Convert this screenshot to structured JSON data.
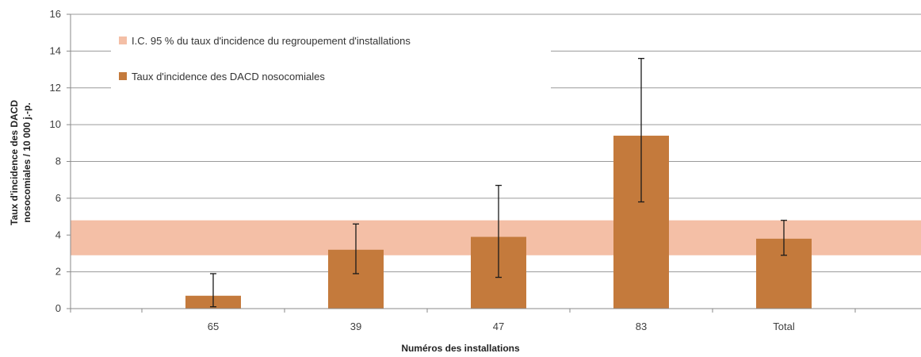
{
  "chart_data": {
    "type": "bar",
    "categories": [
      "65",
      "39",
      "47",
      "83",
      "Total"
    ],
    "series": [
      {
        "name": "Taux d'incidence des DACD nosocomiales",
        "values": [
          0.7,
          3.2,
          3.9,
          9.4,
          3.8
        ],
        "error_low": [
          0.1,
          1.9,
          1.7,
          5.8,
          2.9
        ],
        "error_high": [
          1.9,
          4.6,
          6.7,
          13.6,
          4.8
        ],
        "color": "#C47A3C"
      }
    ],
    "band": {
      "name": "I.C. 95 % du taux d'incidence du regroupement d'installations",
      "low": 2.9,
      "high": 4.8,
      "color": "#F4BFA6"
    },
    "xlabel": "Numéros des installations",
    "ylabel_line1": "Taux d'incidence des DACD",
    "ylabel_line2": "nosocomiales / 10 000 j.-p.",
    "ylim": [
      0,
      16
    ],
    "yticks": [
      0,
      2,
      4,
      6,
      8,
      10,
      12,
      14,
      16
    ],
    "grid": true,
    "legend_position": "top-left"
  }
}
